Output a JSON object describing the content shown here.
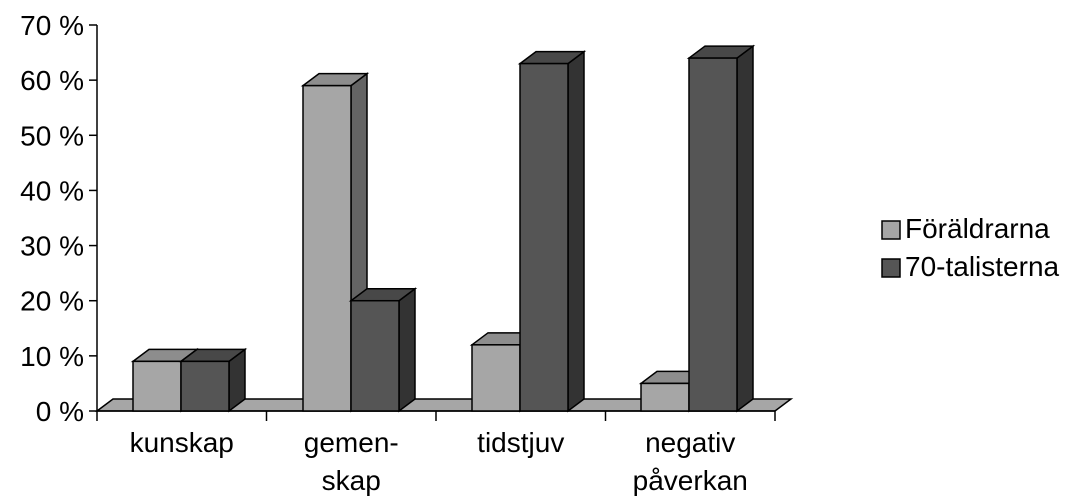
{
  "chart_data": {
    "type": "bar",
    "title": "",
    "xlabel": "",
    "ylabel": "",
    "ylim": [
      0,
      70
    ],
    "yticks": [
      "0 %",
      "10 %",
      "20 %",
      "30 %",
      "40 %",
      "50 %",
      "60 %",
      "70 %"
    ],
    "categories": [
      [
        "kunskap"
      ],
      [
        "gemen-",
        "skap"
      ],
      [
        "tidstjuv"
      ],
      [
        "negativ",
        "påverkan"
      ]
    ],
    "series": [
      {
        "name": "Föräldrarna",
        "values": [
          9,
          59,
          12,
          5
        ],
        "color": "#a6a6a6"
      },
      {
        "name": "70-talisterna",
        "values": [
          9,
          20,
          63,
          64
        ],
        "color": "#555555"
      }
    ],
    "legend_position": "right",
    "grid": false,
    "three_d": true
  }
}
